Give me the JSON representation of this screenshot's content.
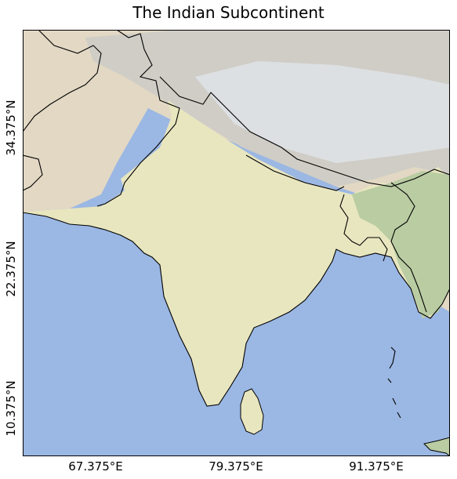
{
  "title": "The Indian Subcontinent",
  "map": {
    "x_ticks": [
      "67.375°E",
      "79.375°E",
      "91.375°E"
    ],
    "y_ticks": [
      "34.375°N",
      "22.375°N",
      "10.375°N"
    ],
    "colors": {
      "ocean": "#9bb7e3",
      "lowland": "#e8e6bf",
      "plateau": "#d8d2b8",
      "mountains": "#cfcdc6",
      "snow": "#dde0e3",
      "forest": "#b9cca2",
      "desert": "#e2d8c4",
      "border": "#000000"
    }
  }
}
